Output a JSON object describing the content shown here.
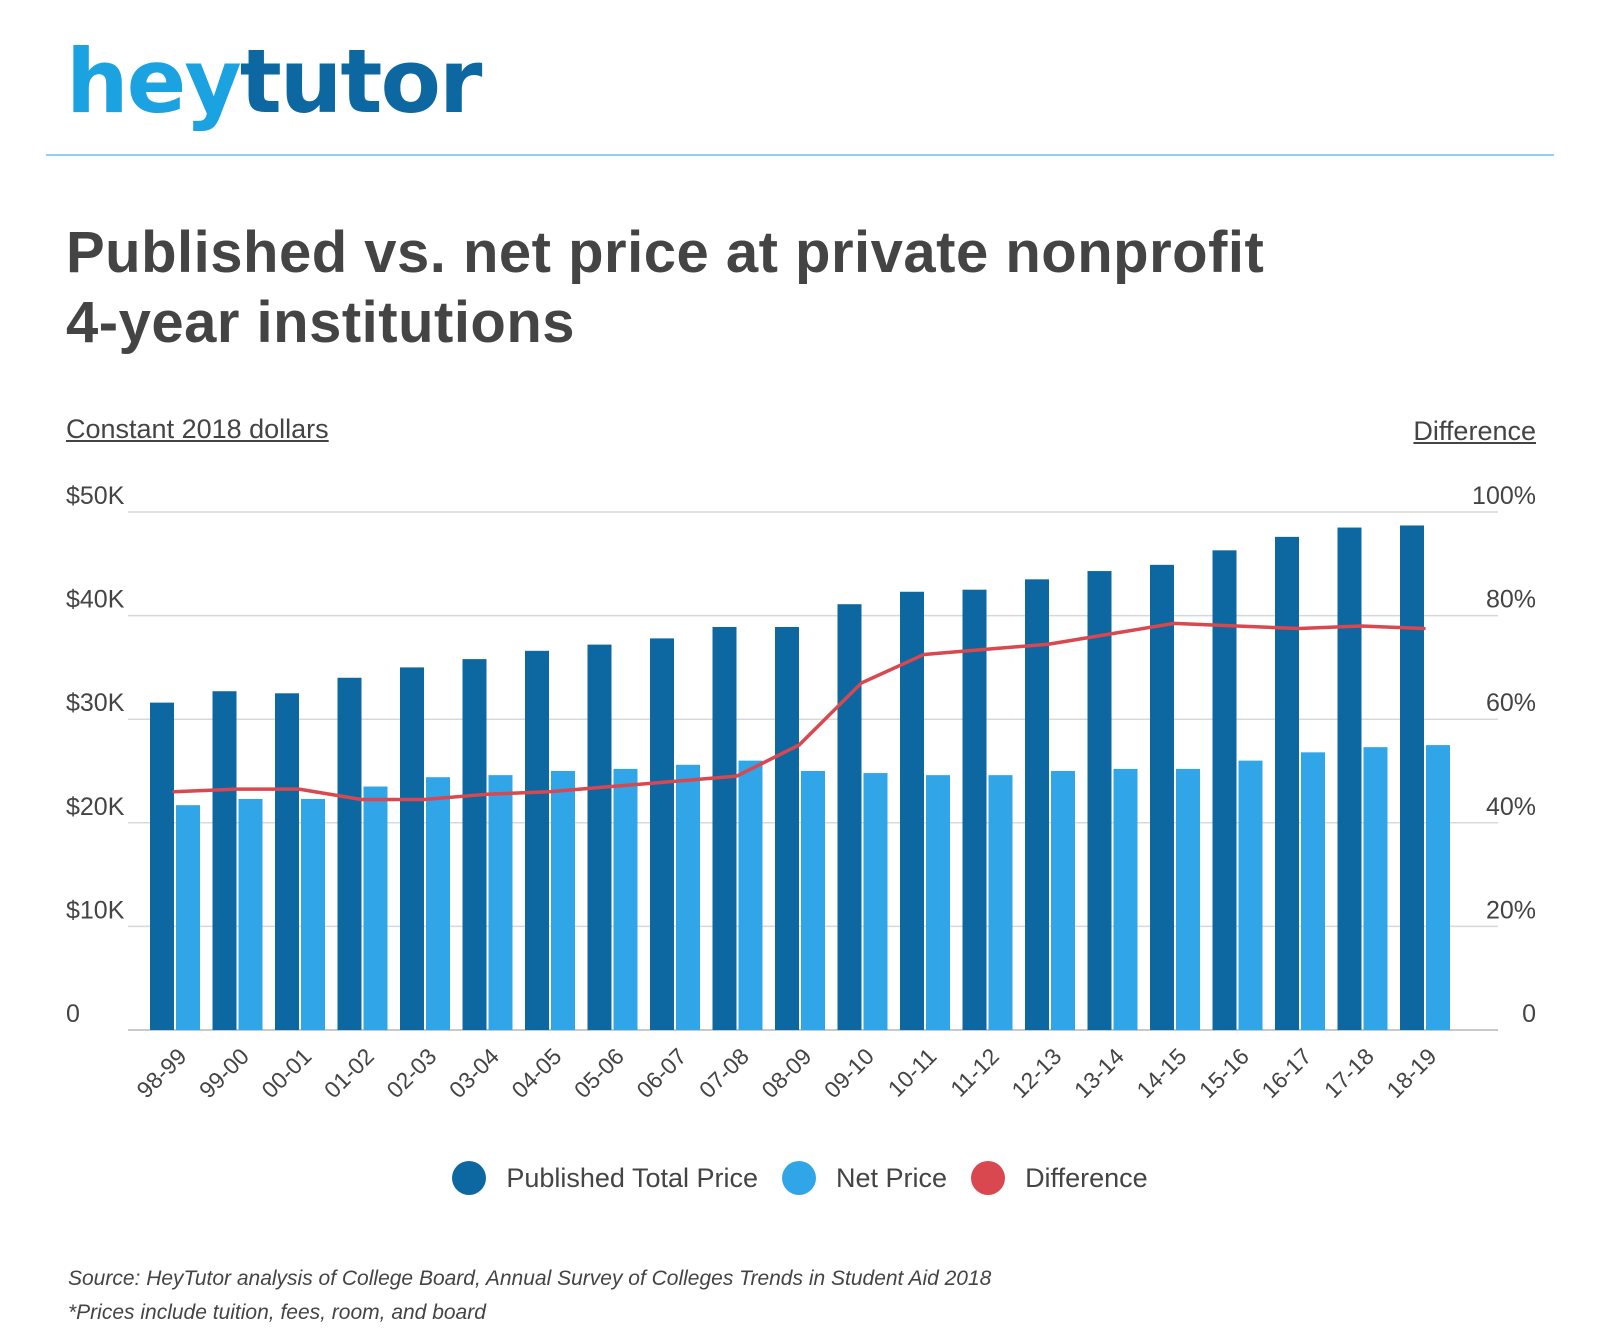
{
  "brand": {
    "logo_part1": "hey",
    "logo_part2": "tutor",
    "color_primary": "#1aa3e0",
    "color_secondary": "#0d68a1"
  },
  "header": {
    "title_line1": "Published vs. net price at private nonprofit",
    "title_line2": "4-year institutions"
  },
  "footer": {
    "source": "Source: HeyTutor analysis of College Board, Annual Survey of Colleges Trends in Student Aid 2018",
    "note": "*Prices include tuition, fees, room, and board"
  },
  "chart_data": {
    "type": "bar",
    "left_axis_label": "Constant 2018 dollars",
    "right_axis_label": "Difference",
    "categories": [
      "98-99",
      "99-00",
      "00-01",
      "01-02",
      "02-03",
      "03-04",
      "04-05",
      "05-06",
      "06-07",
      "07-08",
      "08-09",
      "09-10",
      "10-11",
      "11-12",
      "12-13",
      "13-14",
      "14-15",
      "15-16",
      "16-17",
      "17-18",
      "18-19"
    ],
    "ylim": [
      0,
      50000
    ],
    "yticks": [
      "0",
      "$10K",
      "$20K",
      "$30K",
      "$40K",
      "$50K"
    ],
    "y2lim": [
      0,
      100
    ],
    "y2ticks": [
      "0",
      "20%",
      "40%",
      "60%",
      "80%",
      "100%"
    ],
    "grid": true,
    "legend_position": "bottom",
    "series": [
      {
        "name": "Published Total Price",
        "kind": "bar",
        "axis": "left",
        "color": "#0d68a1",
        "values": [
          31600,
          32700,
          32500,
          34000,
          35000,
          35800,
          36600,
          37200,
          37800,
          38900,
          38900,
          41100,
          42300,
          42500,
          43500,
          44300,
          44900,
          46300,
          47600,
          48500,
          48700
        ]
      },
      {
        "name": "Net Price",
        "kind": "bar",
        "axis": "left",
        "color": "#30a5e8",
        "values": [
          21700,
          22300,
          22300,
          23500,
          24400,
          24600,
          25000,
          25200,
          25600,
          26000,
          25000,
          24800,
          24600,
          24600,
          25000,
          25200,
          25200,
          26000,
          26800,
          27300,
          27500
        ]
      },
      {
        "name": "Difference",
        "kind": "line",
        "axis": "right",
        "color": "#d9474f",
        "values": [
          46,
          46.5,
          46.5,
          44.5,
          44.5,
          45.5,
          46,
          47,
          48,
          49,
          55,
          67,
          72.5,
          73.5,
          74.5,
          76.5,
          78.5,
          78,
          77.5,
          78,
          77.5
        ]
      }
    ]
  }
}
